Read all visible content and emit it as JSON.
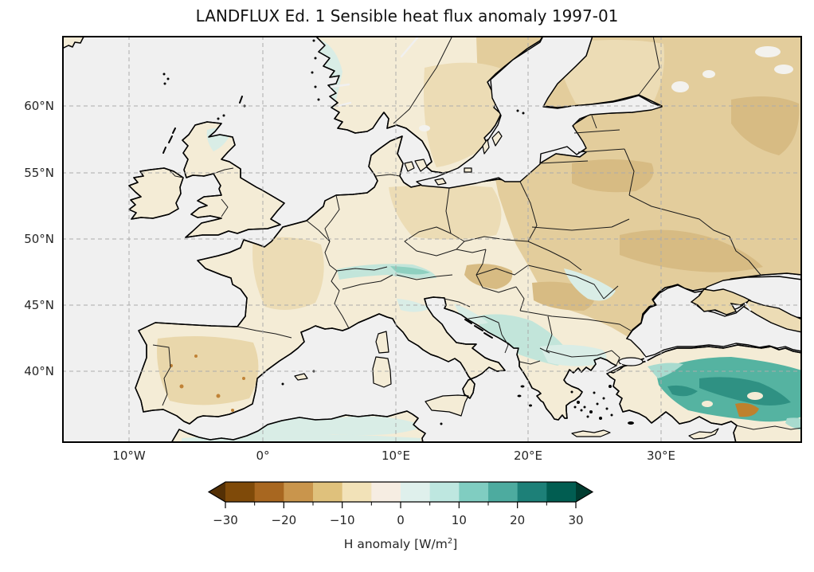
{
  "figure": {
    "title": "LANDFLUX Ed. 1 Sensible heat flux anomaly 1997-01"
  },
  "axes": {
    "x_ticks": [
      "10°W",
      "0°",
      "10°E",
      "20°E",
      "30°E"
    ],
    "y_ticks": [
      "60°N",
      "55°N",
      "50°N",
      "45°N",
      "40°N"
    ]
  },
  "colorbar": {
    "label_prefix": "H anomaly [W/m",
    "label_sup": "2",
    "label_suffix": "]",
    "label_full": "H anomaly [W/m2]",
    "tick_labels": [
      "−30",
      "−20",
      "−10",
      "0",
      "10",
      "20",
      "30"
    ],
    "segment_colors": [
      "#7f4a09",
      "#a86720",
      "#c9954c",
      "#dfc17c",
      "#f2e2b8",
      "#f6ede2",
      "#dff0ec",
      "#bee7e0",
      "#80cdc1",
      "#4dab9f",
      "#1d8078",
      "#015d51"
    ],
    "under_color": "#543005",
    "over_color": "#003c30"
  },
  "map": {
    "ocean_color": "#f0f0f0",
    "land_color": "#f4ecd6",
    "coast_color": "#000000",
    "grid_color": "#ababab"
  },
  "chart_data": {
    "type": "heatmap",
    "title": "LANDFLUX Ed. 1 Sensible heat flux anomaly 1997-01",
    "dataset": "LANDFLUX Ed. 1",
    "variable": "Sensible heat flux anomaly (H)",
    "period": "1997-01",
    "units": "W/m2",
    "projection": "equirectangular, Europe window",
    "lon_range_deg": [
      -15.1,
      40.8
    ],
    "lat_range_deg": [
      34.7,
      65.3
    ],
    "x_tick_labels": [
      "10°W",
      "0°",
      "10°E",
      "20°E",
      "30°E"
    ],
    "y_tick_labels": [
      "60°N",
      "55°N",
      "50°N",
      "45°N",
      "40°N"
    ],
    "grid": true,
    "gridline_style": "dashed gray",
    "ocean_masked_gray": true,
    "colorbar": {
      "orientation": "horizontal",
      "position": "bottom",
      "label": "H anomaly [W/m2]",
      "ticks": [
        -30,
        -20,
        -10,
        0,
        10,
        20,
        30
      ],
      "bin_edges": [
        -30,
        -25,
        -20,
        -15,
        -10,
        -5,
        0,
        5,
        10,
        15,
        20,
        25,
        30
      ],
      "extend": "both",
      "colormap": "BrBG (brown = negative, teal = positive)"
    },
    "regional_anomalies_wm2": [
      {
        "region": "Anatolia / Turkey interior",
        "value": 15
      },
      {
        "region": "Southeast Turkey patch",
        "value": -15
      },
      {
        "region": "Balkans (Serbia, Bosnia, Macedonia, W Bulgaria)",
        "value": 7
      },
      {
        "region": "Northern Greece / Bulgaria",
        "value": 5
      },
      {
        "region": "Alps band (N Italy / Austria border)",
        "value": 6
      },
      {
        "region": "North Africa (Algeria, Tunisia)",
        "value": 4
      },
      {
        "region": "Western Europe (France, UK, Ireland)",
        "value": -2
      },
      {
        "region": "Iberia (speckled)",
        "value": -5
      },
      {
        "region": "Central Europe (Germany, Poland)",
        "value": -4
      },
      {
        "region": "Hungary / Romania",
        "value": -8
      },
      {
        "region": "Eastern Europe (Belarus, Ukraine, W Russia)",
        "value": -9
      },
      {
        "region": "Scandinavia",
        "value": -4
      },
      {
        "region": "Norway west coast / Scotland",
        "value": 2
      }
    ]
  }
}
